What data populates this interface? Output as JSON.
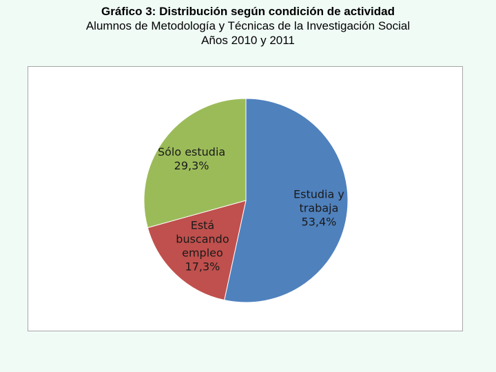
{
  "header": {
    "title": "Gráfico 3: Distribución según condición de actividad",
    "subtitle": "Alumnos de Metodología y Técnicas de la Investigación Social",
    "years": "Años 2010 y 2011"
  },
  "chart_data": {
    "type": "pie",
    "title": "Gráfico 3: Distribución según condición de actividad",
    "subtitle": "Alumnos de Metodología y Técnicas de la Investigación Social Años 2010 y 2011",
    "slices": [
      {
        "label": "Estudia y trabaja",
        "label_lines": [
          "Estudia y",
          "trabaja",
          "53,4%"
        ],
        "value": 53.4,
        "value_label": "53,4%",
        "color": "#4f81bd"
      },
      {
        "label": "Está buscando empleo",
        "label_lines": [
          "Está",
          "buscando",
          "empleo",
          "17,3%"
        ],
        "value": 17.3,
        "value_label": "17,3%",
        "color": "#c0504d"
      },
      {
        "label": "Sólo estudia",
        "label_lines": [
          "Sólo estudia",
          "29,3%"
        ],
        "value": 29.3,
        "value_label": "29,3%",
        "color": "#9bbb59"
      }
    ],
    "start_angle": "12 o'clock",
    "direction": "clockwise",
    "legend": "none",
    "labels": "inside"
  }
}
